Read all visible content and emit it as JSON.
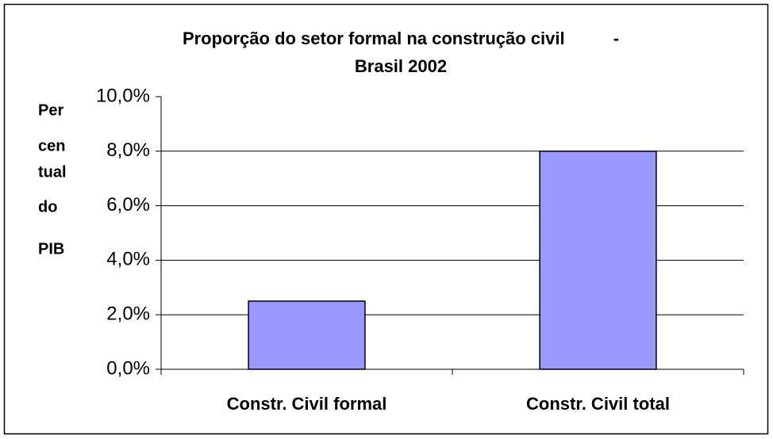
{
  "chart_data": {
    "type": "bar",
    "title": [
      "Proporção do setor formal na construção civil          -",
      "Brasil 2002"
    ],
    "y_label": [
      "Per",
      "cen",
      "tual",
      "do",
      "PIB"
    ],
    "categories": [
      "Constr. Civil formal",
      "Constr. Civil total"
    ],
    "values": [
      2.5,
      8.0
    ],
    "color": "#9999ff",
    "ylim": [
      0,
      10
    ],
    "yticks": [
      {
        "value": 0,
        "label": "0,0%"
      },
      {
        "value": 2,
        "label": "2,0%"
      },
      {
        "value": 4,
        "label": "4,0%"
      },
      {
        "value": 6,
        "label": "6,0%"
      },
      {
        "value": 8,
        "label": "8,0%"
      },
      {
        "value": 10,
        "label": "10,0%"
      }
    ],
    "grid": true
  }
}
